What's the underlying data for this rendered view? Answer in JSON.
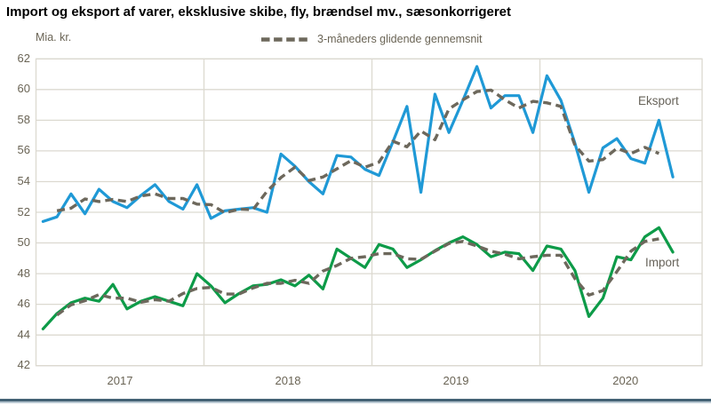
{
  "title": "Import og eksport af varer, eksklusive skibe, fly, brændsel mv., sæsonkorrigeret",
  "y_axis_unit": "Mia. kr.",
  "legend": {
    "label": "3-måneders glidende gennemsnit"
  },
  "series_labels": {
    "export": "Eksport",
    "import": "Import"
  },
  "colors": {
    "export_line": "#1f99d6",
    "import_line": "#0d9b48",
    "moving_average_line": "#6d685c",
    "gridline": "#dcd9d0",
    "axis_text": "#6a6455",
    "title_text": "#000000",
    "footer_bar_dark": "#44627572",
    "footer_dark": "#446275",
    "footer_light": "#b9c8d2",
    "background": "#ffffff"
  },
  "chart_data": {
    "type": "line",
    "title": "Import og eksport af varer, eksklusive skibe, fly, brændsel mv., sæsonkorrigeret",
    "ylabel": "Mia. kr.",
    "ylim": [
      42,
      62
    ],
    "yticks": [
      42,
      44,
      46,
      48,
      50,
      52,
      54,
      56,
      58,
      60,
      62
    ],
    "xlabels": [
      "2017",
      "2018",
      "2019",
      "2020"
    ],
    "grid": "horizontal gridlines every 2 units; vertical gridlines at year boundaries",
    "legend_position": "top-center",
    "x_frequency": "monthly",
    "x": [
      "2017-01",
      "2017-02",
      "2017-03",
      "2017-04",
      "2017-05",
      "2017-06",
      "2017-07",
      "2017-08",
      "2017-09",
      "2017-10",
      "2017-11",
      "2017-12",
      "2018-01",
      "2018-02",
      "2018-03",
      "2018-04",
      "2018-05",
      "2018-06",
      "2018-07",
      "2018-08",
      "2018-09",
      "2018-10",
      "2018-11",
      "2018-12",
      "2019-01",
      "2019-02",
      "2019-03",
      "2019-04",
      "2019-05",
      "2019-06",
      "2019-07",
      "2019-08",
      "2019-09",
      "2019-10",
      "2019-11",
      "2019-12",
      "2020-01",
      "2020-02",
      "2020-03",
      "2020-04",
      "2020-05",
      "2020-06",
      "2020-07",
      "2020-08",
      "2020-09",
      "2020-10"
    ],
    "series": [
      {
        "name": "Eksport",
        "style": "solid",
        "color": "#1f99d6",
        "values": [
          51.4,
          51.7,
          53.2,
          51.9,
          53.5,
          52.7,
          52.3,
          53.1,
          53.8,
          52.7,
          52.2,
          53.8,
          51.6,
          52.1,
          52.2,
          52.3,
          52.0,
          55.8,
          55.0,
          54.0,
          53.2,
          55.7,
          55.6,
          54.8,
          54.4,
          56.6,
          58.9,
          53.3,
          59.7,
          57.2,
          59.3,
          61.5,
          58.8,
          59.6,
          59.6,
          57.2,
          60.9,
          59.3,
          56.5,
          53.3,
          56.2,
          56.8,
          55.5,
          55.2,
          58.0,
          54.3
        ]
      },
      {
        "name": "Import",
        "style": "solid",
        "color": "#0d9b48",
        "values": [
          44.4,
          45.4,
          46.1,
          46.4,
          46.2,
          47.3,
          45.7,
          46.2,
          46.5,
          46.2,
          45.9,
          48.0,
          47.2,
          46.1,
          46.7,
          47.2,
          47.3,
          47.6,
          47.2,
          47.9,
          47.0,
          49.6,
          49.0,
          48.4,
          49.9,
          49.6,
          48.4,
          48.9,
          49.5,
          50.0,
          50.4,
          49.9,
          49.1,
          49.4,
          49.3,
          48.2,
          49.8,
          49.6,
          48.2,
          45.2,
          46.4,
          49.1,
          48.9,
          50.4,
          51.0,
          49.4
        ]
      },
      {
        "name": "3-måneders glidende gennemsnit (Eksport)",
        "style": "dashed",
        "color": "#6d685c",
        "derived": "centered 3-month moving average of Eksport"
      },
      {
        "name": "3-måneders glidende gennemsnit (Import)",
        "style": "dashed",
        "color": "#6d685c",
        "derived": "centered 3-month moving average of Import"
      }
    ]
  }
}
